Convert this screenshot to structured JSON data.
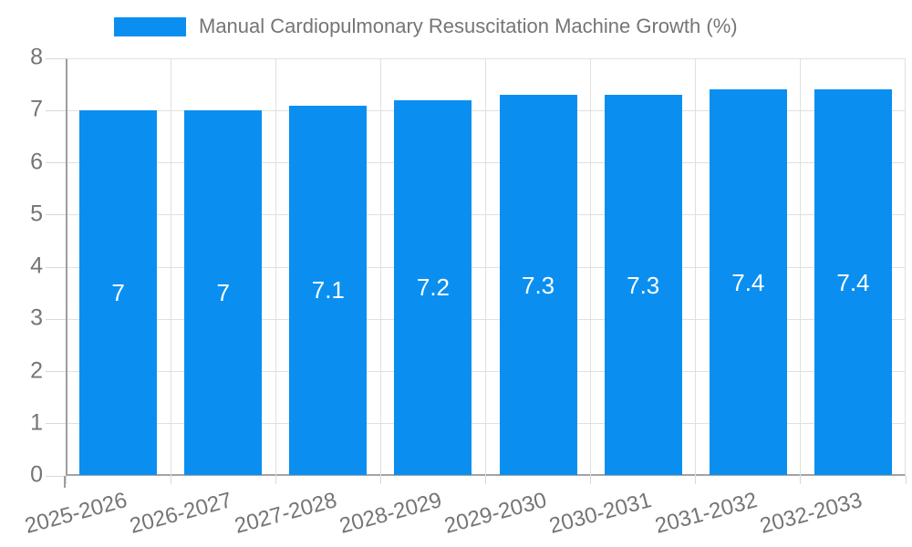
{
  "legend": {
    "label": "Manual Cardiopulmonary Resuscitation Machine Growth (%)"
  },
  "chart_data": {
    "type": "bar",
    "title": "Manual Cardiopulmonary Resuscitation Machine Growth (%)",
    "categories": [
      "2025-2026",
      "2026-2027",
      "2027-2028",
      "2028-2029",
      "2029-2030",
      "2030-2031",
      "2031-2032",
      "2032-2033"
    ],
    "values": [
      7,
      7,
      7.1,
      7.2,
      7.3,
      7.3,
      7.4,
      7.4
    ],
    "value_labels": [
      "7",
      "7",
      "7.1",
      "7.2",
      "7.3",
      "7.3",
      "7.4",
      "7.4"
    ],
    "xlabel": "",
    "ylabel": "",
    "ylim": [
      0,
      8
    ],
    "yticks": [
      0,
      1,
      2,
      3,
      4,
      5,
      6,
      7,
      8
    ],
    "grid": true,
    "legend_position": "top",
    "bar_color": "#0a8ff0",
    "value_label_color": "#ffffff",
    "tick_text_color": "#757575",
    "grid_color": "#e0e0e0",
    "axis_color": "#9e9e9e",
    "background_color": "#ffffff"
  }
}
